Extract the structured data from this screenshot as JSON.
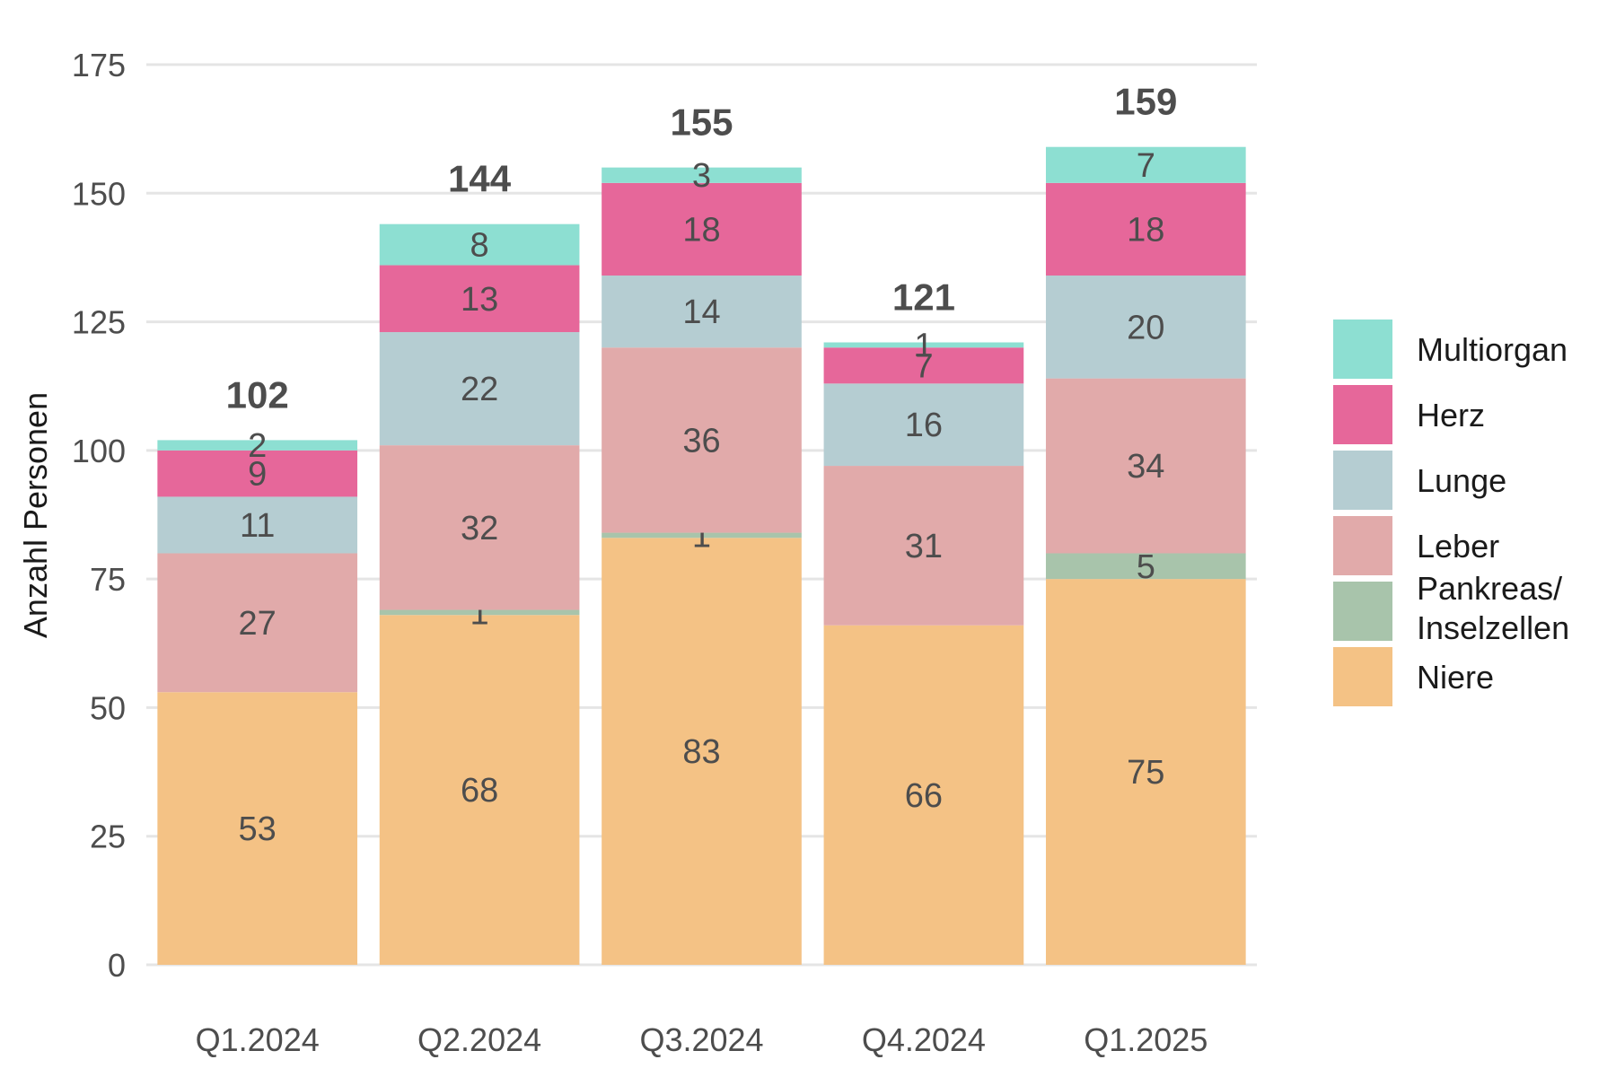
{
  "chart_data": {
    "type": "bar",
    "stacked": true,
    "title": "",
    "xlabel": "",
    "ylabel": "Anzahl Personen",
    "ylim": [
      0,
      175
    ],
    "yticks": [
      0,
      25,
      50,
      75,
      100,
      125,
      150,
      175
    ],
    "grid": true,
    "legend_position": "right",
    "categories": [
      "Q1.2024",
      "Q2.2024",
      "Q3.2024",
      "Q4.2024",
      "Q1.2025"
    ],
    "series": [
      {
        "name": "Niere",
        "color": "#F4C285",
        "values": [
          53,
          68,
          83,
          66,
          75
        ]
      },
      {
        "name": "Pankreas/ Inselzellen",
        "color": "#A8C4AB",
        "values": [
          0,
          1,
          1,
          0,
          5
        ]
      },
      {
        "name": "Leber",
        "color": "#E1AAAA",
        "values": [
          27,
          32,
          36,
          31,
          34
        ]
      },
      {
        "name": "Lunge",
        "color": "#B5CDD2",
        "values": [
          11,
          22,
          14,
          16,
          20
        ]
      },
      {
        "name": "Herz",
        "color": "#E6679A",
        "values": [
          9,
          13,
          18,
          7,
          18
        ]
      },
      {
        "name": "Multiorgan",
        "color": "#8DDFD2",
        "values": [
          2,
          8,
          3,
          1,
          7
        ]
      }
    ],
    "totals": [
      102,
      144,
      155,
      121,
      159
    ]
  }
}
